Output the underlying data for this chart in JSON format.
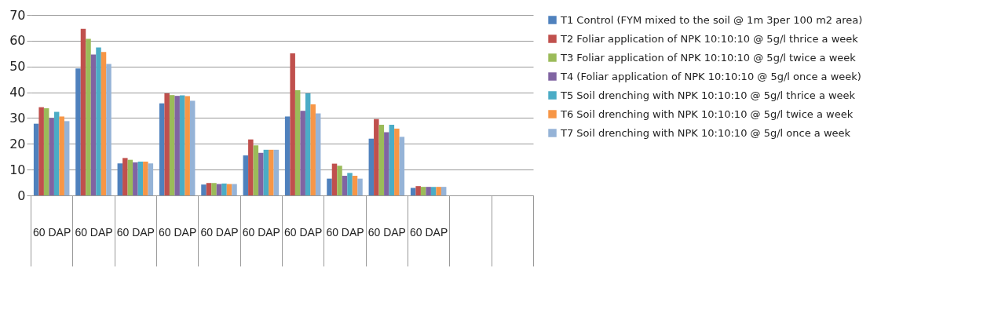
{
  "chart_data": {
    "type": "bar",
    "categories": [
      "60 DAP",
      "60 DAP",
      "60 DAP",
      "60 DAP",
      "60 DAP",
      "60 DAP",
      "60 DAP",
      "60 DAP",
      "60 DAP",
      "60 DAP",
      null,
      null
    ],
    "series": [
      {
        "name": "T1 Control (FYM mixed to the soil @ 1m 3per 100 m2 area)",
        "color": "#4f81bd",
        "values": [
          27.8,
          49.2,
          12.4,
          35.7,
          4.2,
          15.5,
          30.6,
          6.5,
          22,
          2.9,
          null,
          null
        ]
      },
      {
        "name": "T2 Foliar application of NPK 10:10:10 @ 5g/l thrice a week",
        "color": "#c0504d",
        "values": [
          34.2,
          64.6,
          14.5,
          39.6,
          4.8,
          21.7,
          55.1,
          12.3,
          29.6,
          3.6,
          null,
          null
        ]
      },
      {
        "name": "T3 Foliar application of NPK 10:10:10 @ 5g/l twice a week",
        "color": "#9bbb59",
        "values": [
          33.8,
          60.7,
          13.8,
          38.9,
          4.8,
          19.4,
          40.8,
          11.5,
          27.4,
          3.3,
          null,
          null
        ]
      },
      {
        "name": "T4 (Foliar application of NPK 10:10:10 @ 5g/l once a week)",
        "color": "#8064a2",
        "values": [
          30,
          54.6,
          12.8,
          38.6,
          4.4,
          16.5,
          32.8,
          7.6,
          24.5,
          3.3,
          null,
          null
        ]
      },
      {
        "name": "T5 Soil drenching with NPK 10:10:10 @ 5g/l thrice a week",
        "color": "#4bacc6",
        "values": [
          32.4,
          57.4,
          13.1,
          38.8,
          4.6,
          17.7,
          39.6,
          8.7,
          27.4,
          3.3,
          null,
          null
        ]
      },
      {
        "name": "T6 Soil drenching with NPK 10:10:10 @ 5g/l twice a week",
        "color": "#f79646",
        "values": [
          30.6,
          55.6,
          13.1,
          38.5,
          4.4,
          17.7,
          35.3,
          7.6,
          25.9,
          3.3,
          null,
          null
        ]
      },
      {
        "name": "T7 Soil drenching with NPK 10:10:10 @ 5g/l once a week",
        "color": "#95b3d7",
        "values": [
          28.8,
          51,
          12.4,
          36.7,
          4.4,
          17.7,
          31.8,
          6.5,
          22.7,
          3.3,
          null,
          null
        ]
      }
    ],
    "ylim": [
      0,
      70
    ],
    "yticks": [
      0,
      10,
      20,
      30,
      40,
      50,
      60,
      70
    ],
    "grid": "y",
    "legend": "right"
  }
}
